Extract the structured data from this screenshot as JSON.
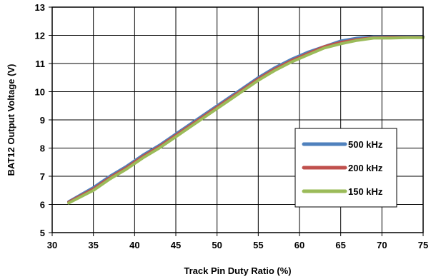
{
  "chart_data": {
    "type": "line",
    "title": "",
    "xlabel": "Track Pin Duty Ratio (%)",
    "ylabel": "BAT12 Output Voltage (V)",
    "xlim": [
      30,
      75
    ],
    "ylim": [
      5,
      13
    ],
    "xticks": [
      30,
      35,
      40,
      45,
      50,
      55,
      60,
      65,
      70,
      75
    ],
    "yticks": [
      5,
      6,
      7,
      8,
      9,
      10,
      11,
      12,
      13
    ],
    "xtick_labels": [
      "30",
      "35",
      "40",
      "45",
      "50",
      "55",
      "60",
      "65",
      "70",
      "75"
    ],
    "ytick_labels": [
      "5",
      "6",
      "7",
      "8",
      "9",
      "10",
      "11",
      "12",
      "13"
    ],
    "grid": true,
    "legend_position": "lower-right",
    "series": [
      {
        "name": "500 kHz",
        "color": "#4f81bd",
        "x": [
          32,
          35,
          37,
          39,
          41,
          43,
          45,
          47,
          49,
          51,
          53,
          55,
          57,
          59,
          61,
          63,
          65,
          67,
          69,
          71,
          73,
          75
        ],
        "y": [
          6.1,
          6.6,
          7.0,
          7.35,
          7.75,
          8.1,
          8.5,
          8.9,
          9.3,
          9.7,
          10.1,
          10.5,
          10.85,
          11.15,
          11.4,
          11.6,
          11.8,
          11.9,
          11.95,
          11.95,
          11.95,
          11.95
        ]
      },
      {
        "name": "200 kHz",
        "color": "#c0504d",
        "x": [
          32,
          35,
          37,
          39,
          41,
          43,
          45,
          47,
          49,
          51,
          53,
          55,
          57,
          59,
          61,
          63,
          65,
          67,
          69,
          71,
          73,
          75
        ],
        "y": [
          6.08,
          6.55,
          6.95,
          7.3,
          7.7,
          8.05,
          8.45,
          8.85,
          9.25,
          9.65,
          10.05,
          10.45,
          10.8,
          11.1,
          11.35,
          11.6,
          11.75,
          11.85,
          11.92,
          11.93,
          11.93,
          11.93
        ]
      },
      {
        "name": "150 kHz",
        "color": "#9bbb59",
        "x": [
          32,
          35,
          37,
          39,
          41,
          43,
          45,
          47,
          49,
          51,
          53,
          55,
          57,
          59,
          61,
          63,
          65,
          67,
          69,
          71,
          73,
          75
        ],
        "y": [
          6.05,
          6.5,
          6.9,
          7.25,
          7.65,
          8.0,
          8.4,
          8.8,
          9.2,
          9.6,
          10.0,
          10.4,
          10.75,
          11.05,
          11.3,
          11.55,
          11.7,
          11.82,
          11.9,
          11.9,
          11.92,
          11.92
        ]
      }
    ]
  }
}
